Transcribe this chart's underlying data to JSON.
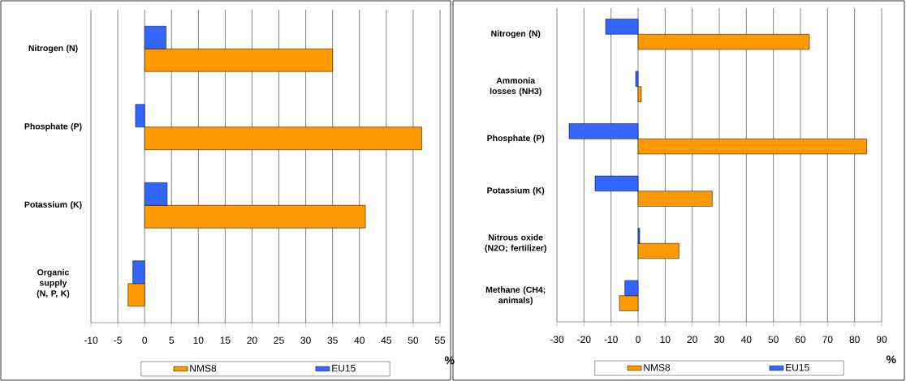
{
  "chart_data": [
    {
      "type": "bar",
      "orientation": "horizontal",
      "categories": [
        "Nitrogen (N)",
        "Phosphate (P)",
        "Potassium (K)",
        "Organic supply (N, P, K)"
      ],
      "series": [
        {
          "name": "NMS8",
          "color": "#ff9900",
          "values": [
            35,
            51.6,
            41.1,
            -3.1
          ]
        },
        {
          "name": "EU15",
          "color": "#3366ff",
          "values": [
            4.0,
            -1.7,
            4.2,
            -2.2
          ]
        }
      ],
      "xlim": [
        -10,
        55
      ],
      "xticks": [
        -10,
        -5,
        0,
        5,
        10,
        15,
        20,
        25,
        30,
        35,
        40,
        45,
        50,
        55
      ],
      "xlabel": "%",
      "grid": "x",
      "legend": "bottom"
    },
    {
      "type": "bar",
      "orientation": "horizontal",
      "categories": [
        "Nitrogen (N)",
        "Ammonia losses (NH3)",
        "Phosphate (P)",
        "Potassium (K)",
        "Nitrous oxide (N2O; fertilizer)",
        "Methane (CH4; animals)"
      ],
      "series": [
        {
          "name": "NMS8",
          "color": "#ff9900",
          "values": [
            63.3,
            1.2,
            84.5,
            27.4,
            15.1,
            -6.9
          ]
        },
        {
          "name": "EU15",
          "color": "#3366ff",
          "values": [
            -12.0,
            -0.9,
            -25.5,
            -15.9,
            0.6,
            -4.9
          ]
        }
      ],
      "xlim": [
        -30,
        90
      ],
      "xticks": [
        -30,
        -20,
        -10,
        0,
        10,
        20,
        30,
        40,
        50,
        60,
        70,
        80,
        90
      ],
      "xlabel": "%",
      "grid": "x",
      "legend": "bottom"
    }
  ]
}
